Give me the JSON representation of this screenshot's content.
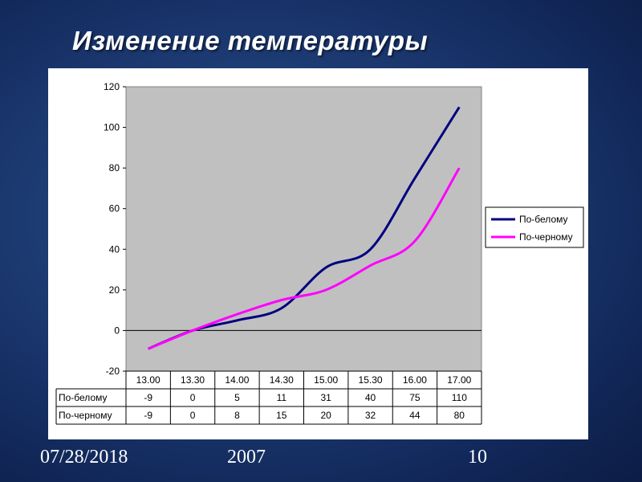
{
  "slide": {
    "title": "Изменение температуры",
    "footer_date": "07/28/2018",
    "footer_year": "2007",
    "footer_page": "10"
  },
  "colors": {
    "plot_bg": "#c0c0c0",
    "series1": "#000080",
    "series2": "#ff00ff"
  },
  "chart_data": {
    "type": "line",
    "title": "",
    "xlabel": "",
    "ylabel": "",
    "categories": [
      "13.00",
      "13.30",
      "14.00",
      "14.30",
      "15.00",
      "15.30",
      "16.00",
      "17.00"
    ],
    "series": [
      {
        "name": "По-белому",
        "values": [
          -9,
          0,
          5,
          11,
          31,
          40,
          75,
          110
        ]
      },
      {
        "name": "По-черному",
        "values": [
          -9,
          0,
          8,
          15,
          20,
          32,
          44,
          80
        ]
      }
    ],
    "ylim": [
      -20,
      120
    ],
    "yticks": [
      120,
      100,
      80,
      60,
      40,
      20,
      0,
      -20
    ],
    "grid": false,
    "legend_position": "right",
    "data_table": true
  }
}
